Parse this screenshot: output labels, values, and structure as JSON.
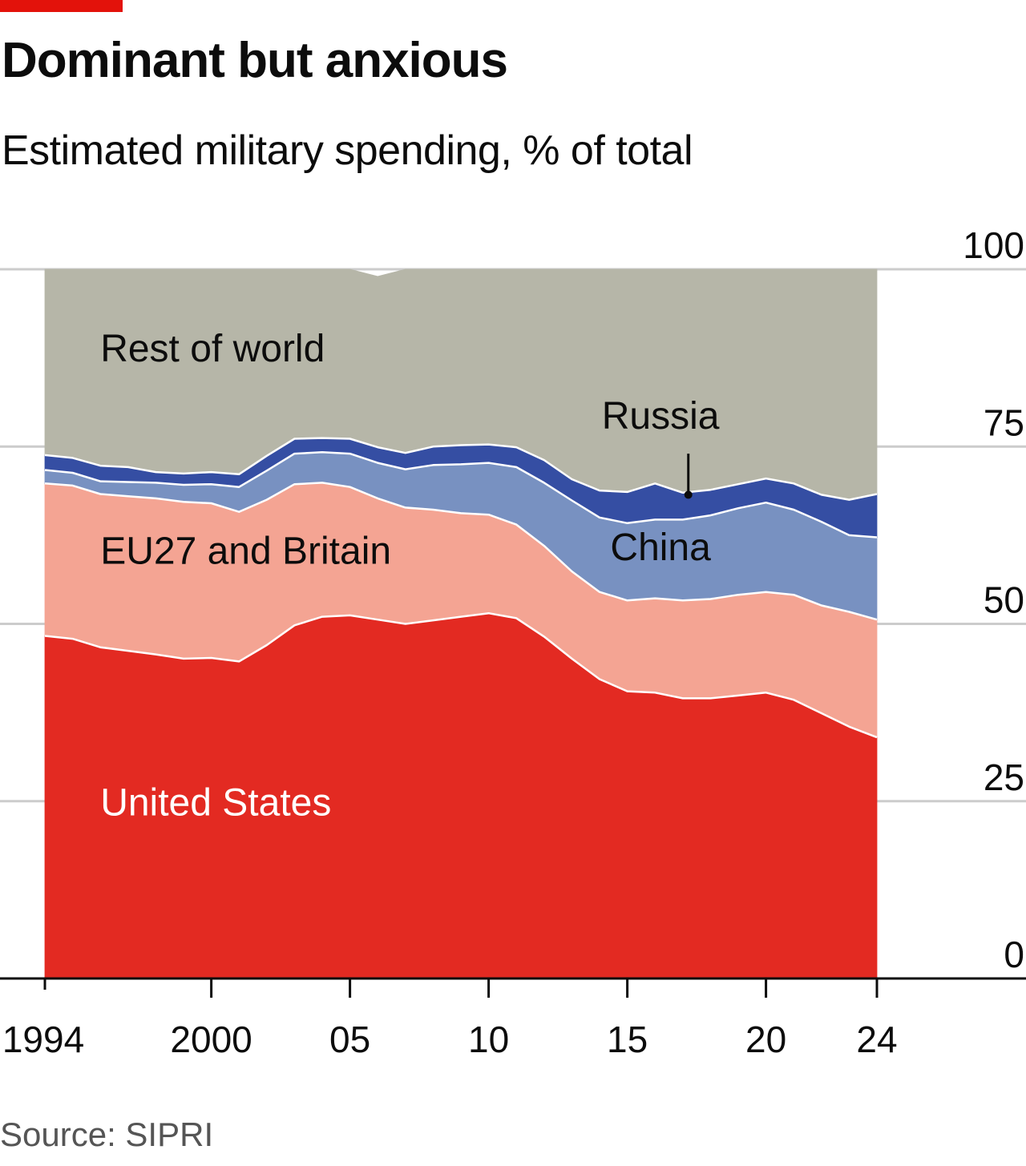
{
  "header": {
    "title": "Dominant but anxious",
    "subtitle": "Estimated military spending, % of total"
  },
  "footer": {
    "source": "Source: SIPRI"
  },
  "colors": {
    "brand_tag": "#e3120b",
    "united_states": "#e32a22",
    "eu27_britain": "#f4a493",
    "china": "#7891c1",
    "russia": "#354ea3",
    "rest_of_world": "#b6b6a8",
    "gridline": "#cccccc",
    "axis": "#0c0c0c"
  },
  "chart_data": {
    "type": "area",
    "stacked": true,
    "title": "Dominant but anxious",
    "subtitle": "Estimated military spending, % of total",
    "xlabel": "",
    "ylabel": "",
    "ylim": [
      0,
      100
    ],
    "xlim": [
      1994,
      2024
    ],
    "y_ticks": [
      0,
      25,
      50,
      75,
      100
    ],
    "y_tick_labels": [
      "0",
      "25",
      "50",
      "75",
      "100"
    ],
    "x_ticks": [
      1994,
      2000,
      2005,
      2010,
      2015,
      2020,
      2024
    ],
    "x_tick_labels": [
      "1994",
      "2000",
      "05",
      "10",
      "15",
      "20",
      "24"
    ],
    "y_axis_position": "right",
    "grid": true,
    "legend": "direct labels",
    "x": [
      1994,
      1995,
      1996,
      1997,
      1998,
      1999,
      2000,
      2001,
      2002,
      2003,
      2004,
      2005,
      2006,
      2007,
      2008,
      2009,
      2010,
      2011,
      2012,
      2013,
      2014,
      2015,
      2016,
      2017,
      2018,
      2019,
      2020,
      2021,
      2022,
      2023,
      2024
    ],
    "series": [
      {
        "name": "United States",
        "color_key": "united_states",
        "label_color": "#ffffff",
        "values": [
          48.3,
          47.9,
          46.7,
          46.2,
          45.7,
          45.1,
          45.2,
          44.7,
          47.0,
          49.8,
          51.0,
          51.2,
          50.6,
          50.0,
          50.5,
          51.0,
          51.5,
          50.8,
          48.2,
          45.1,
          42.2,
          40.5,
          40.3,
          39.5,
          39.5,
          39.9,
          40.3,
          39.3,
          37.4,
          35.5,
          34.0
        ]
      },
      {
        "name": "EU27 and Britain",
        "color_key": "eu27_britain",
        "label_color": "#0c0c0c",
        "values": [
          21.5,
          21.6,
          21.6,
          21.8,
          22.0,
          22.1,
          21.8,
          21.1,
          20.5,
          19.9,
          18.9,
          18.1,
          17.1,
          16.4,
          15.6,
          14.6,
          13.9,
          13.2,
          12.8,
          12.3,
          12.3,
          12.8,
          13.3,
          13.8,
          14.0,
          14.2,
          14.2,
          14.8,
          15.2,
          16.2,
          16.6
        ]
      },
      {
        "name": "China",
        "color_key": "china",
        "label_color": "#0c0c0c",
        "values": [
          1.9,
          1.8,
          1.8,
          2.0,
          2.2,
          2.4,
          2.7,
          3.5,
          4.1,
          4.3,
          4.3,
          4.7,
          5.0,
          5.4,
          6.3,
          6.9,
          7.3,
          8.1,
          8.9,
          10.0,
          10.5,
          10.9,
          11.1,
          11.4,
          11.8,
          12.2,
          12.6,
          12.0,
          11.8,
          10.8,
          11.6
        ]
      },
      {
        "name": "Russia",
        "color_key": "russia",
        "label_color": "#0c0c0c",
        "values": [
          2.1,
          2.1,
          2.2,
          2.1,
          1.5,
          1.6,
          1.7,
          1.8,
          2.1,
          2.1,
          2.0,
          2.1,
          2.2,
          2.3,
          2.6,
          2.7,
          2.6,
          2.8,
          3.2,
          3.0,
          3.8,
          4.4,
          5.1,
          3.8,
          3.6,
          3.4,
          3.4,
          3.7,
          3.8,
          5.0,
          6.1
        ]
      },
      {
        "name": "Rest of world",
        "color_key": "rest_of_world",
        "label_color": "#0c0c0c",
        "values": [
          26.2,
          26.6,
          27.7,
          27.9,
          28.6,
          28.8,
          28.6,
          28.9,
          26.3,
          23.9,
          23.8,
          23.9,
          24.1,
          25.9,
          25.0,
          24.8,
          24.7,
          25.1,
          26.9,
          29.6,
          31.2,
          31.4,
          30.2,
          31.5,
          31.1,
          30.3,
          29.5,
          30.2,
          31.8,
          32.5,
          31.7
        ]
      }
    ],
    "annotations": [
      {
        "text": "Rest of world",
        "series": "Rest of world"
      },
      {
        "text": "EU27 and Britain",
        "series": "EU27 and Britain"
      },
      {
        "text": "China",
        "series": "China"
      },
      {
        "text": "Russia",
        "series": "Russia",
        "pointer": true
      },
      {
        "text": "United States",
        "series": "United States"
      }
    ]
  }
}
